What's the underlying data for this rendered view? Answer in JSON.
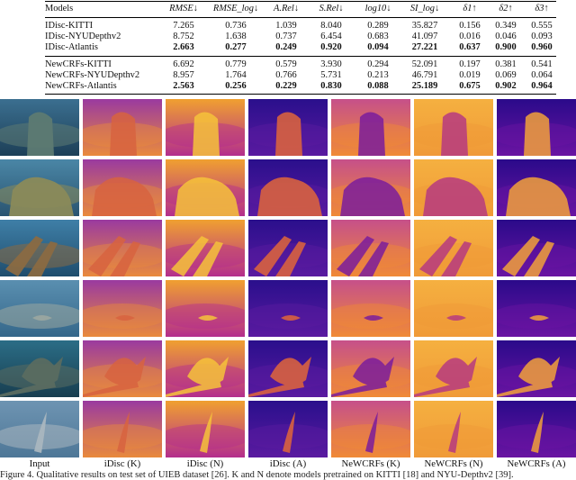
{
  "table": {
    "header": [
      "Models",
      "RMSE↓",
      "RMSE_log↓",
      "A.Rel↓",
      "S.Rel↓",
      "log10↓",
      "SI_log↓",
      "δ1↑",
      "δ2↑",
      "δ3↑"
    ],
    "groups": [
      [
        {
          "model": "IDisc-KITTI",
          "values": [
            "7.265",
            "0.736",
            "1.039",
            "8.040",
            "0.289",
            "35.827",
            "0.156",
            "0.349",
            "0.555"
          ],
          "bold": false
        },
        {
          "model": "IDisc-NYUDepthv2",
          "values": [
            "8.752",
            "1.638",
            "0.737",
            "6.454",
            "0.683",
            "41.097",
            "0.016",
            "0.046",
            "0.093"
          ],
          "bold": false
        },
        {
          "model": "IDisc-Atlantis",
          "values": [
            "2.663",
            "0.277",
            "0.249",
            "0.920",
            "0.094",
            "27.221",
            "0.637",
            "0.900",
            "0.960"
          ],
          "bold": true
        }
      ],
      [
        {
          "model": "NewCRFs-KITTI",
          "values": [
            "6.692",
            "0.779",
            "0.579",
            "3.930",
            "0.294",
            "52.091",
            "0.197",
            "0.381",
            "0.541"
          ],
          "bold": false
        },
        {
          "model": "NewCRFs-NYUDepthv2",
          "values": [
            "8.957",
            "1.764",
            "0.766",
            "5.731",
            "0.213",
            "46.791",
            "0.019",
            "0.069",
            "0.064"
          ],
          "bold": false
        },
        {
          "model": "NewCRFs-Atlantis",
          "values": [
            "2.563",
            "0.256",
            "0.229",
            "0.830",
            "0.088",
            "25.189",
            "0.675",
            "0.902",
            "0.964"
          ],
          "bold": true
        }
      ]
    ]
  },
  "columns": [
    "Input",
    "iDisc (K)",
    "iDisc (N)",
    "iDisc (A)",
    "NeWCRFs (K)",
    "NeWCRFs (N)",
    "NeWCRFs (A)"
  ],
  "caption": "Figure 4. Qualitative results on test set of UIEB dataset [26]. K and N denote models pretrained on KITTI [18] and NYU-Depthv2 [39].",
  "palette": {
    "plasma_dark": "#2a0a8a",
    "plasma_mid": "#b32e8c",
    "plasma_orange": "#f08a36",
    "plasma_yellow": "#f5e62a",
    "water_blue": "#1f6fa0"
  },
  "rows": [
    {
      "scene": "reef-pillar",
      "prediction_style": [
        "blurry-purple",
        "bright-orange",
        "dark-blue-object",
        "mixed-orange",
        "pale-orange",
        "dark-blue-object"
      ]
    },
    {
      "scene": "coral-boulder",
      "prediction_style": [
        "blurry-purple",
        "bright-orange",
        "dark-blue-object",
        "mixed-orange",
        "pale-orange",
        "dark-blue-object"
      ]
    },
    {
      "scene": "shipwreck-debris",
      "prediction_style": [
        "blurry-purple",
        "bright-orange",
        "dark-blue-object",
        "mixed-orange",
        "pale-orange",
        "dark-blue-object"
      ]
    },
    {
      "scene": "fish-over-sand",
      "prediction_style": [
        "blurry-purple",
        "bright-orange",
        "dark-blue-object",
        "mixed-orange",
        "pale-orange",
        "dark-blue-object"
      ]
    },
    {
      "scene": "lionfish-wreck",
      "prediction_style": [
        "blurry-purple",
        "bright-orange",
        "dark-blue-object",
        "mixed-orange",
        "pale-orange",
        "dark-blue-object"
      ]
    },
    {
      "scene": "shrimp-closeup",
      "prediction_style": [
        "blurry-purple",
        "bright-orange",
        "dark-blue-object",
        "mixed-orange",
        "pale-orange",
        "dark-blue-object"
      ]
    }
  ]
}
